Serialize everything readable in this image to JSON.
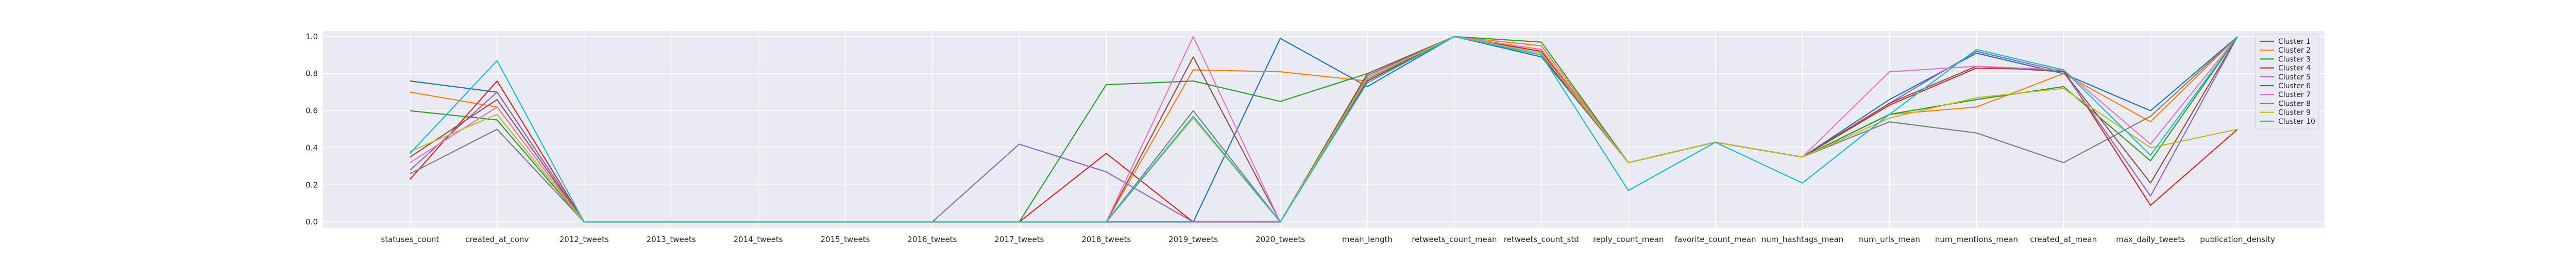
{
  "chart_data": {
    "type": "line",
    "categories": [
      "statuses_count",
      "created_at_conv",
      "2012_tweets",
      "2013_tweets",
      "2014_tweets",
      "2015_tweets",
      "2016_tweets",
      "2017_tweets",
      "2018_tweets",
      "2019_tweets",
      "2020_tweets",
      "mean_length",
      "retweets_count_mean",
      "retweets_count_std",
      "reply_count_mean",
      "favorite_count_mean",
      "num_hashtags_mean",
      "num_urls_mean",
      "num_mentions_mean",
      "created_at_mean",
      "max_daily_tweets",
      "publication_density"
    ],
    "ylim": [
      -0.03,
      1.03
    ],
    "yticks": [
      0.0,
      0.2,
      0.4,
      0.6,
      0.8,
      1.0
    ],
    "ytick_labels": [
      "0.0",
      "0.2",
      "0.4",
      "0.6",
      "0.8",
      "1.0"
    ],
    "grid": true,
    "legend_position": "top-right",
    "series": [
      {
        "name": "Cluster 1",
        "color": "#1f77b4",
        "values": [
          0.76,
          0.7,
          0,
          0,
          0,
          0,
          0,
          0,
          0,
          0,
          0.99,
          0.73,
          1.0,
          0.89,
          0.32,
          0.43,
          0.35,
          0.66,
          0.91,
          0.8,
          0.6,
          1.0
        ]
      },
      {
        "name": "Cluster 2",
        "color": "#ff7f0e",
        "values": [
          0.7,
          0.62,
          0,
          0,
          0,
          0,
          0,
          0,
          0,
          0.82,
          0.81,
          0.76,
          1.0,
          0.95,
          0.32,
          0.43,
          0.35,
          0.58,
          0.62,
          0.8,
          0.54,
          1.0
        ]
      },
      {
        "name": "Cluster 3",
        "color": "#2ca02c",
        "values": [
          0.6,
          0.55,
          0,
          0,
          0,
          0,
          0,
          0,
          0.74,
          0.76,
          0.65,
          0.8,
          1.0,
          0.97,
          0.32,
          0.43,
          0.35,
          0.58,
          0.66,
          0.73,
          0.33,
          1.0
        ]
      },
      {
        "name": "Cluster 4",
        "color": "#d62728",
        "values": [
          0.23,
          0.76,
          0,
          0,
          0,
          0,
          0,
          0,
          0.37,
          0,
          0,
          0.76,
          1.0,
          0.92,
          0.32,
          0.43,
          0.35,
          0.63,
          0.83,
          0.82,
          0.09,
          0.5
        ]
      },
      {
        "name": "Cluster 5",
        "color": "#9467bd",
        "values": [
          0.28,
          0.7,
          0,
          0,
          0,
          0,
          0,
          0.42,
          0.27,
          0,
          0,
          0.79,
          1.0,
          0.91,
          0.32,
          0.43,
          0.35,
          0.64,
          0.92,
          0.81,
          0.14,
          1.0
        ]
      },
      {
        "name": "Cluster 6",
        "color": "#8c564b",
        "values": [
          0.35,
          0.66,
          0,
          0,
          0,
          0,
          0,
          0,
          0,
          0.89,
          0,
          0.8,
          1.0,
          0.9,
          0.32,
          0.43,
          0.35,
          0.64,
          0.84,
          0.81,
          0.21,
          1.0
        ]
      },
      {
        "name": "Cluster 7",
        "color": "#e377c2",
        "values": [
          0.32,
          0.62,
          0,
          0,
          0,
          0,
          0,
          0,
          0,
          1.0,
          0,
          0.78,
          1.0,
          0.93,
          0.32,
          0.43,
          0.35,
          0.81,
          0.84,
          0.82,
          0.42,
          1.0
        ]
      },
      {
        "name": "Cluster 8",
        "color": "#7f7f7f",
        "values": [
          0.26,
          0.5,
          0,
          0,
          0,
          0,
          0,
          0,
          0,
          0.6,
          0,
          0.77,
          1.0,
          0.91,
          0.32,
          0.43,
          0.35,
          0.54,
          0.48,
          0.32,
          0.57,
          1.0
        ]
      },
      {
        "name": "Cluster 9",
        "color": "#bcbd22",
        "values": [
          0.38,
          0.58,
          0,
          0,
          0,
          0,
          0,
          0,
          0,
          0.56,
          0,
          0.78,
          1.0,
          0.91,
          0.32,
          0.43,
          0.35,
          0.56,
          0.67,
          0.72,
          0.4,
          0.5
        ]
      },
      {
        "name": "Cluster 10",
        "color": "#17becf",
        "values": [
          0.37,
          0.87,
          0,
          0,
          0,
          0,
          0,
          0,
          0,
          0.57,
          0,
          0.75,
          1.0,
          0.9,
          0.17,
          0.43,
          0.21,
          0.58,
          0.93,
          0.82,
          0.36,
          1.0
        ]
      }
    ]
  }
}
